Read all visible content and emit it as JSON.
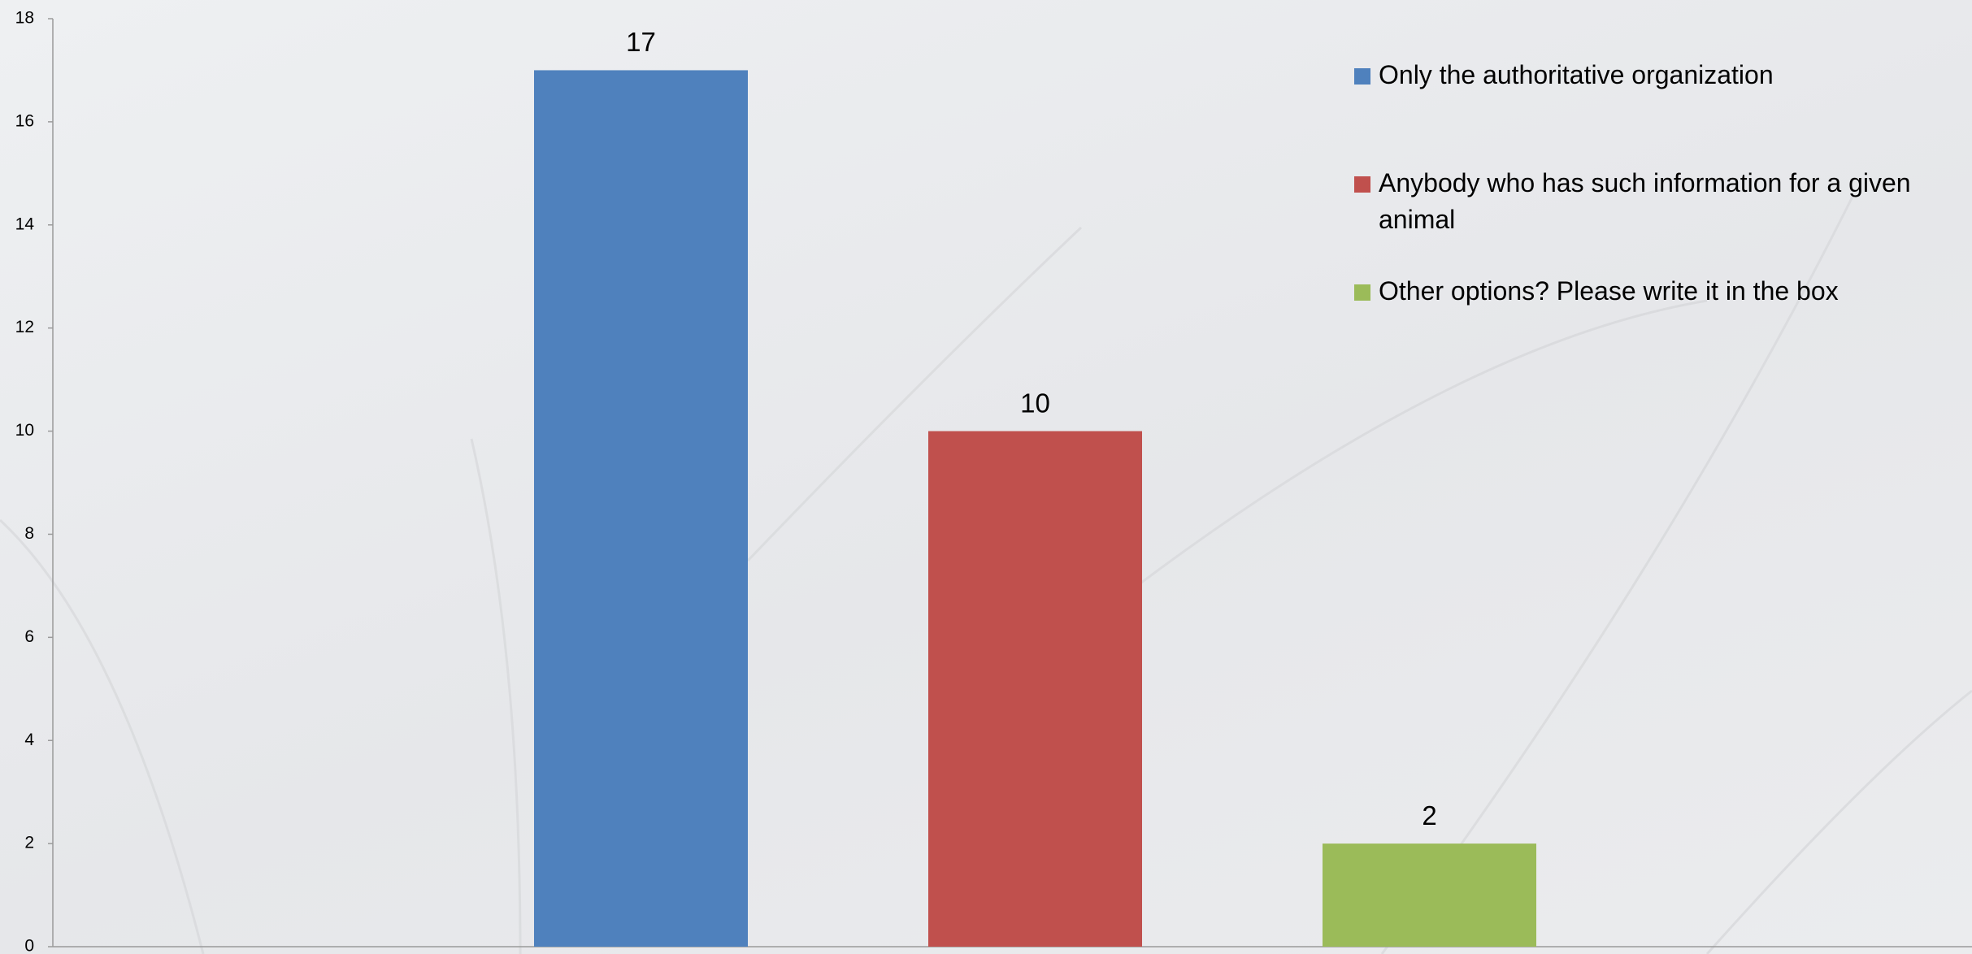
{
  "chart_data": {
    "type": "bar",
    "categories": [
      null
    ],
    "series": [
      {
        "name": "Only the authoritative organization",
        "color": "#4f81bd",
        "values": [
          17
        ]
      },
      {
        "name": "Anybody who has such information for a given animal",
        "color": "#c0504d",
        "values": [
          10
        ]
      },
      {
        "name": "Other options? Please write it in the box",
        "color": "#9bbb59",
        "values": [
          2
        ]
      }
    ],
    "ylim": [
      0,
      18
    ],
    "yticks": [
      0,
      2,
      4,
      6,
      8,
      10,
      12,
      14,
      16,
      18
    ],
    "data_labels": true,
    "legend": "top-right"
  }
}
